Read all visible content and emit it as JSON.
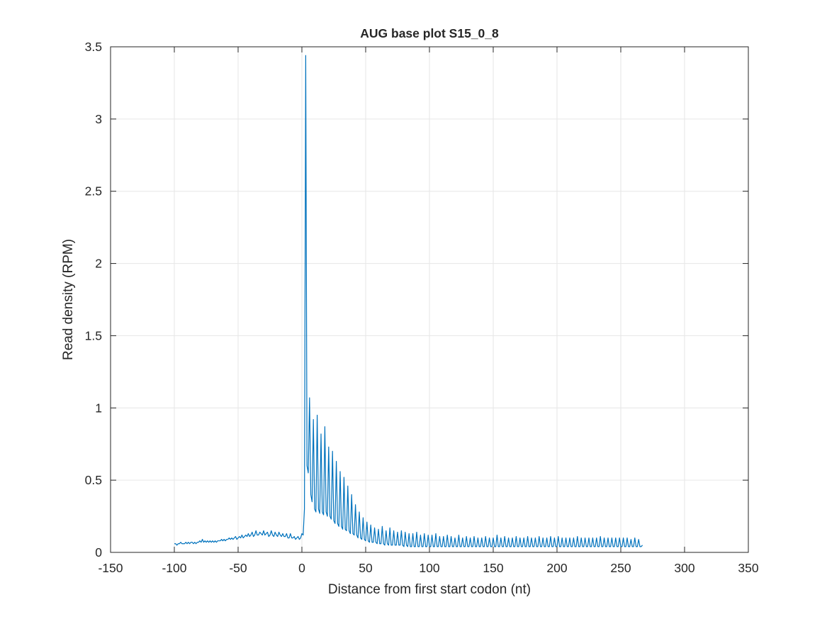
{
  "chart_data": {
    "type": "line",
    "title": "AUG base plot S15_0_8",
    "xlabel": "Distance from first start codon (nt)",
    "ylabel": "Read density (RPM)",
    "xlim": [
      -150,
      350
    ],
    "ylim": [
      0,
      3.5
    ],
    "xticks": [
      -150,
      -100,
      -50,
      0,
      50,
      100,
      150,
      200,
      250,
      300,
      350
    ],
    "xtick_labels": [
      "-150",
      "-100",
      "-50",
      "0",
      "50",
      "100",
      "150",
      "200",
      "250",
      "300",
      "350"
    ],
    "yticks": [
      0,
      0.5,
      1,
      1.5,
      2,
      2.5,
      3,
      3.5
    ],
    "ytick_labels": [
      "0",
      "0.5",
      "1",
      "1.5",
      "2",
      "2.5",
      "3",
      "3.5"
    ],
    "grid": true,
    "legend": "none",
    "series_color": "#0072bd",
    "series": [
      {
        "x_start": -100,
        "x_step": 1,
        "values": [
          0.06,
          0.06,
          0.05,
          0.06,
          0.06,
          0.07,
          0.06,
          0.06,
          0.06,
          0.07,
          0.06,
          0.07,
          0.06,
          0.07,
          0.07,
          0.06,
          0.07,
          0.06,
          0.07,
          0.07,
          0.08,
          0.07,
          0.09,
          0.07,
          0.08,
          0.07,
          0.08,
          0.07,
          0.08,
          0.07,
          0.08,
          0.07,
          0.08,
          0.07,
          0.08,
          0.08,
          0.08,
          0.09,
          0.08,
          0.09,
          0.08,
          0.09,
          0.09,
          0.1,
          0.09,
          0.1,
          0.09,
          0.1,
          0.11,
          0.09,
          0.1,
          0.11,
          0.1,
          0.12,
          0.1,
          0.11,
          0.12,
          0.11,
          0.13,
          0.11,
          0.12,
          0.14,
          0.11,
          0.12,
          0.15,
          0.12,
          0.12,
          0.14,
          0.13,
          0.12,
          0.15,
          0.12,
          0.13,
          0.14,
          0.11,
          0.12,
          0.15,
          0.12,
          0.11,
          0.14,
          0.12,
          0.11,
          0.14,
          0.12,
          0.11,
          0.13,
          0.11,
          0.11,
          0.13,
          0.1,
          0.1,
          0.13,
          0.1,
          0.1,
          0.11,
          0.09,
          0.1,
          0.11,
          0.09,
          0.1,
          0.13,
          0.12,
          0.3,
          3.44,
          0.6,
          0.55,
          1.07,
          0.4,
          0.35,
          0.92,
          0.3,
          0.28,
          0.95,
          0.3,
          0.27,
          0.82,
          0.28,
          0.26,
          0.87,
          0.28,
          0.25,
          0.73,
          0.25,
          0.23,
          0.7,
          0.22,
          0.2,
          0.63,
          0.2,
          0.18,
          0.56,
          0.18,
          0.16,
          0.52,
          0.16,
          0.15,
          0.46,
          0.15,
          0.13,
          0.4,
          0.13,
          0.12,
          0.33,
          0.12,
          0.1,
          0.28,
          0.1,
          0.09,
          0.24,
          0.09,
          0.08,
          0.21,
          0.08,
          0.07,
          0.19,
          0.07,
          0.07,
          0.17,
          0.07,
          0.06,
          0.16,
          0.06,
          0.06,
          0.18,
          0.06,
          0.05,
          0.15,
          0.06,
          0.05,
          0.17,
          0.05,
          0.05,
          0.15,
          0.05,
          0.05,
          0.14,
          0.05,
          0.05,
          0.15,
          0.05,
          0.04,
          0.14,
          0.05,
          0.04,
          0.13,
          0.04,
          0.04,
          0.13,
          0.04,
          0.04,
          0.14,
          0.04,
          0.04,
          0.12,
          0.04,
          0.04,
          0.13,
          0.04,
          0.04,
          0.12,
          0.04,
          0.04,
          0.12,
          0.04,
          0.04,
          0.13,
          0.04,
          0.04,
          0.11,
          0.04,
          0.04,
          0.11,
          0.04,
          0.04,
          0.12,
          0.04,
          0.04,
          0.11,
          0.04,
          0.04,
          0.1,
          0.04,
          0.04,
          0.12,
          0.04,
          0.04,
          0.1,
          0.04,
          0.04,
          0.11,
          0.04,
          0.04,
          0.1,
          0.04,
          0.04,
          0.11,
          0.04,
          0.04,
          0.1,
          0.04,
          0.04,
          0.1,
          0.04,
          0.04,
          0.11,
          0.04,
          0.04,
          0.1,
          0.04,
          0.04,
          0.1,
          0.04,
          0.04,
          0.12,
          0.04,
          0.04,
          0.1,
          0.04,
          0.04,
          0.11,
          0.04,
          0.04,
          0.1,
          0.04,
          0.04,
          0.1,
          0.04,
          0.04,
          0.11,
          0.04,
          0.04,
          0.1,
          0.04,
          0.04,
          0.1,
          0.04,
          0.04,
          0.11,
          0.04,
          0.04,
          0.1,
          0.04,
          0.04,
          0.1,
          0.04,
          0.04,
          0.11,
          0.04,
          0.04,
          0.1,
          0.04,
          0.04,
          0.1,
          0.04,
          0.04,
          0.11,
          0.04,
          0.04,
          0.1,
          0.04,
          0.04,
          0.11,
          0.04,
          0.04,
          0.1,
          0.04,
          0.04,
          0.1,
          0.04,
          0.04,
          0.1,
          0.04,
          0.04,
          0.1,
          0.04,
          0.04,
          0.11,
          0.04,
          0.04,
          0.1,
          0.04,
          0.04,
          0.1,
          0.04,
          0.04,
          0.1,
          0.04,
          0.04,
          0.1,
          0.04,
          0.04,
          0.1,
          0.04,
          0.04,
          0.11,
          0.04,
          0.04,
          0.1,
          0.04,
          0.04,
          0.1,
          0.04,
          0.04,
          0.1,
          0.04,
          0.04,
          0.1,
          0.04,
          0.04,
          0.1,
          0.04,
          0.04,
          0.1,
          0.04,
          0.04,
          0.1,
          0.04,
          0.04,
          0.09,
          0.04,
          0.04,
          0.1,
          0.04,
          0.04,
          0.09,
          0.04,
          0.04,
          0.05
        ]
      }
    ]
  }
}
